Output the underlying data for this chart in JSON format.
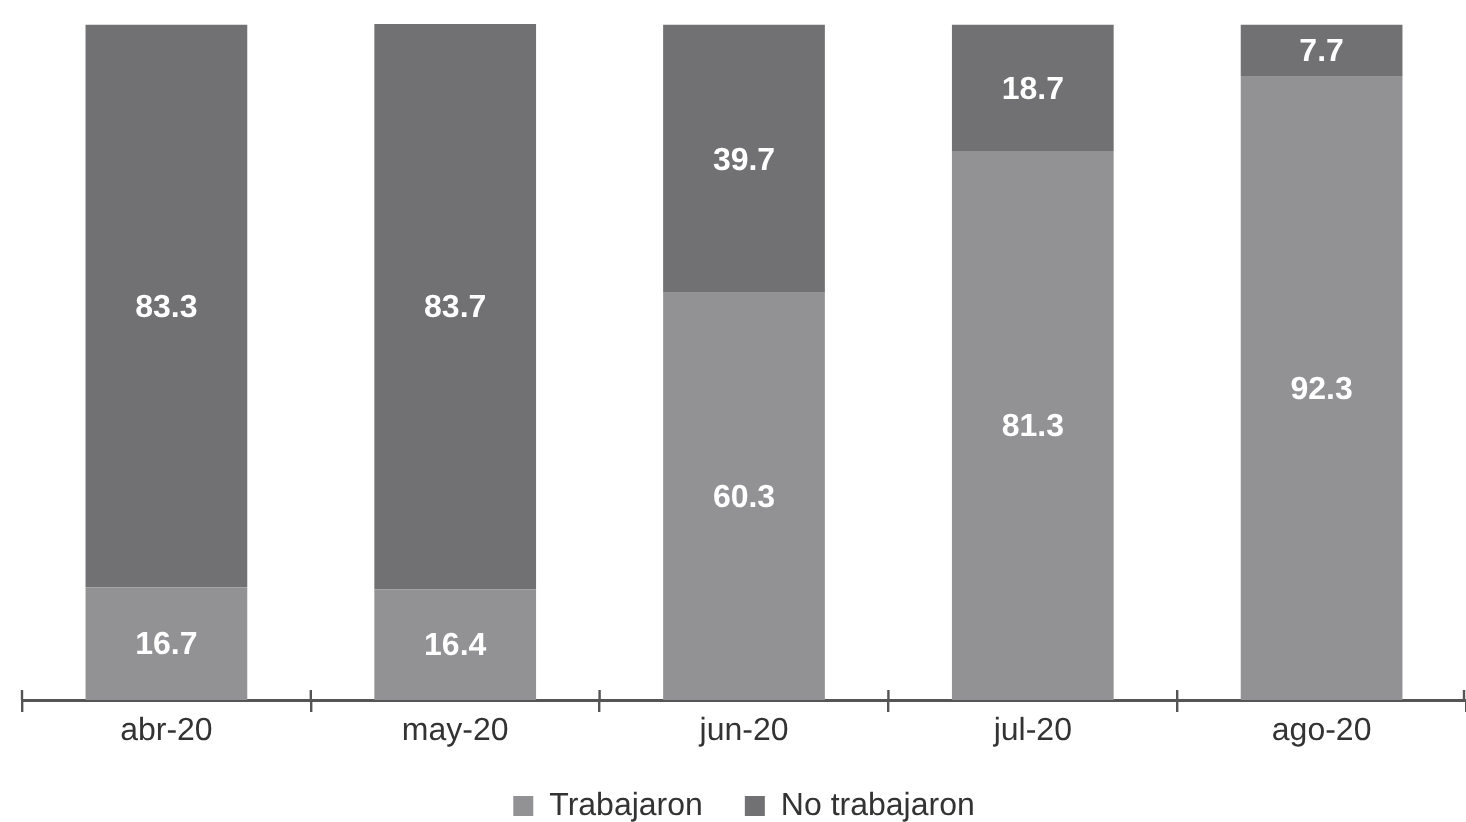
{
  "chart_data": {
    "type": "bar",
    "stacked": true,
    "categories": [
      "abr-20",
      "may-20",
      "jun-20",
      "jul-20",
      "ago-20"
    ],
    "series": [
      {
        "name": "Trabajaron",
        "color": "#929295",
        "values": [
          16.7,
          16.4,
          60.3,
          81.3,
          92.3
        ]
      },
      {
        "name": "No trabajaron",
        "color": "#717174",
        "values": [
          83.3,
          83.7,
          39.7,
          18.7,
          7.7
        ]
      }
    ],
    "data_labels": true,
    "legend": "bottom"
  }
}
